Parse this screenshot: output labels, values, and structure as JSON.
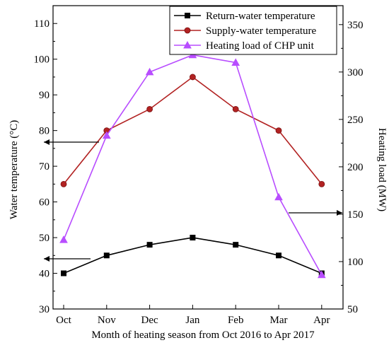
{
  "chart_data": {
    "type": "line",
    "x": [
      "Oct",
      "Nov",
      "Dec",
      "Jan",
      "Feb",
      "Mar",
      "Apr"
    ],
    "xlabel": "Month of heating season from Oct 2016 to Apr 2017",
    "ylabel_left": "Water temperature (°C)",
    "ylabel_right": "Heating load (MW)",
    "ylim_left": [
      30,
      115
    ],
    "ylim_right": [
      50,
      370
    ],
    "yticks_left": [
      30,
      40,
      50,
      60,
      70,
      80,
      90,
      100,
      110
    ],
    "yticks_right": [
      50,
      100,
      150,
      200,
      250,
      300,
      350
    ],
    "grid": false,
    "legend_position": "top-right",
    "series": [
      {
        "name": "Return-water temperature",
        "axis": "left",
        "marker": "square",
        "color": "#000000",
        "values": [
          40,
          45,
          48,
          50,
          48,
          45,
          40
        ]
      },
      {
        "name": "Supply-water temperature",
        "axis": "left",
        "marker": "circle",
        "color": "#b22222",
        "values": [
          65,
          80,
          86,
          95,
          86,
          80,
          65
        ]
      },
      {
        "name": "Heating load of CHP unit",
        "axis": "right",
        "marker": "triangle",
        "color": "#b84dff",
        "values": [
          123,
          233,
          300,
          318,
          310,
          168,
          86
        ]
      }
    ]
  }
}
